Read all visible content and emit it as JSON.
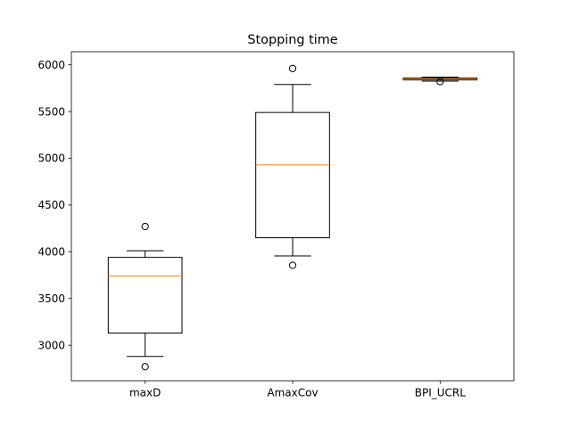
{
  "chart_data": {
    "type": "box",
    "title": "Stopping time",
    "xlabel": "",
    "ylabel": "",
    "ylim": [
      2620,
      6140
    ],
    "yticks": [
      3000,
      3500,
      4000,
      4500,
      5000,
      5500,
      6000
    ],
    "grid": false,
    "colors": {
      "box": "#000000",
      "median": "#ff7f0e",
      "background": "#ffffff"
    },
    "boxes": [
      {
        "label": "maxD",
        "whisker_low": 2880,
        "q1": 3130,
        "median": 3740,
        "q3": 3940,
        "whisker_high": 4010,
        "outliers": [
          2770,
          4270
        ]
      },
      {
        "label": "AmaxCov",
        "whisker_low": 3955,
        "q1": 4150,
        "median": 4930,
        "q3": 5490,
        "whisker_high": 5790,
        "outliers": [
          3855,
          5960
        ]
      },
      {
        "label": "BPI_UCRL",
        "whisker_low": 5825,
        "q1": 5838,
        "median": 5848,
        "q3": 5858,
        "whisker_high": 5868,
        "outliers": [
          5820
        ]
      }
    ]
  }
}
